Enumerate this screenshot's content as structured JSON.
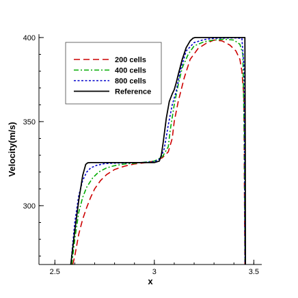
{
  "chart_data": {
    "type": "line",
    "title": "",
    "xlabel": "x",
    "ylabel": "Velocity(m/s)",
    "xlim": [
      2.42,
      3.54
    ],
    "ylim": [
      265,
      402
    ],
    "xticks": [
      2.5,
      3,
      3.5
    ],
    "xtick_labels": [
      "2.5",
      "3",
      "3.5"
    ],
    "yticks": [
      300,
      350,
      400
    ],
    "ytick_labels": [
      "300",
      "350",
      "400"
    ],
    "grid": false,
    "legend_position": "top-left",
    "series": [
      {
        "name": "200 cells",
        "color": "#cc0000",
        "dash": "dashed",
        "x": [
          2.59,
          2.6,
          2.62,
          2.64,
          2.66,
          2.68,
          2.7,
          2.73,
          2.76,
          2.8,
          2.85,
          2.9,
          2.95,
          3.0,
          3.04,
          3.07,
          3.09,
          3.1,
          3.12,
          3.15,
          3.18,
          3.22,
          3.26,
          3.3,
          3.34,
          3.38,
          3.41,
          3.43,
          3.44,
          3.45,
          3.452,
          3.455
        ],
        "y": [
          265,
          270,
          283,
          292,
          299,
          305,
          310,
          315,
          318.5,
          321.5,
          323.5,
          324.8,
          325.5,
          326.5,
          328.5,
          332,
          340,
          350,
          362,
          376,
          387,
          393.5,
          396.5,
          398.5,
          398,
          395.5,
          392,
          387,
          380,
          365,
          320,
          265
        ]
      },
      {
        "name": "400 cells",
        "color": "#00aa00",
        "dash": "dashdot",
        "x": [
          2.585,
          2.6,
          2.62,
          2.64,
          2.66,
          2.69,
          2.72,
          2.76,
          2.8,
          2.85,
          2.9,
          3.0,
          3.04,
          3.07,
          3.08,
          3.1,
          3.12,
          3.14,
          3.17,
          3.2,
          3.25,
          3.3,
          3.35,
          3.4,
          3.43,
          3.445,
          3.452,
          3.456
        ],
        "y": [
          265,
          280,
          296,
          305,
          311,
          316.5,
          320,
          322.5,
          323.8,
          324.8,
          325.2,
          326.5,
          329,
          335,
          345,
          360,
          372,
          382,
          390,
          395,
          397.5,
          398.5,
          399,
          398.5,
          396,
          390,
          340,
          265
        ]
      },
      {
        "name": "800 cells",
        "color": "#0000cc",
        "dash": "dotted",
        "x": [
          2.58,
          2.6,
          2.62,
          2.64,
          2.66,
          2.68,
          2.71,
          2.75,
          2.8,
          2.9,
          3.0,
          3.03,
          3.05,
          3.07,
          3.09,
          3.11,
          3.13,
          3.16,
          3.2,
          3.25,
          3.3,
          3.4,
          3.44,
          3.452,
          3.456
        ],
        "y": [
          265,
          290,
          306,
          315,
          320,
          322.5,
          324,
          325,
          325.3,
          325.5,
          326,
          328,
          334,
          348,
          360,
          368,
          380,
          392,
          397,
          398.8,
          399.5,
          399.8,
          399.5,
          380,
          265
        ]
      },
      {
        "name": "Reference",
        "color": "#000000",
        "dash": "solid",
        "x": [
          2.58,
          2.6,
          2.62,
          2.64,
          2.655,
          2.665,
          2.68,
          2.7,
          2.8,
          2.9,
          3.0,
          3.025,
          3.035,
          3.045,
          3.06,
          3.075,
          3.09,
          3.1,
          3.11,
          3.12,
          3.14,
          3.16,
          3.18,
          3.195,
          3.205,
          3.3,
          3.4,
          3.455,
          3.457,
          3.458
        ],
        "y": [
          265,
          285,
          303,
          318,
          324.5,
          325.5,
          325.6,
          325.6,
          325.6,
          325.6,
          325.6,
          326.5,
          330,
          338,
          352,
          362,
          366.5,
          369,
          373,
          378,
          387,
          394,
          398,
          399.7,
          400,
          400,
          400,
          400,
          340,
          265
        ]
      }
    ]
  }
}
